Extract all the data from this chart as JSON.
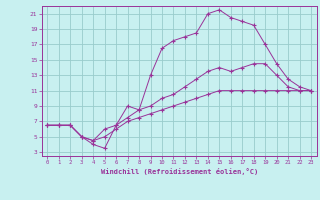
{
  "xlabel": "Windchill (Refroidissement éolien,°C)",
  "bg_color": "#c8f0f0",
  "grid_color": "#99cccc",
  "line_color": "#993399",
  "xlim": [
    -0.5,
    23.5
  ],
  "ylim": [
    2.5,
    22
  ],
  "xticks": [
    0,
    1,
    2,
    3,
    4,
    5,
    6,
    7,
    8,
    9,
    10,
    11,
    12,
    13,
    14,
    15,
    16,
    17,
    18,
    19,
    20,
    21,
    22,
    23
  ],
  "yticks": [
    3,
    5,
    7,
    9,
    11,
    13,
    15,
    17,
    19,
    21
  ],
  "line1_x": [
    0,
    1,
    2,
    3,
    4,
    5,
    6,
    7,
    8,
    9,
    10,
    11,
    12,
    13,
    14,
    15,
    16,
    17,
    18,
    19,
    20,
    21,
    22,
    23
  ],
  "line1_y": [
    6.5,
    6.5,
    6.5,
    5,
    4,
    3.5,
    6.5,
    9,
    8.5,
    13,
    16.5,
    17.5,
    18,
    18.5,
    21,
    21.5,
    20.5,
    20,
    19.5,
    17,
    14.5,
    12.5,
    11.5,
    11
  ],
  "line2_x": [
    0,
    1,
    2,
    3,
    4,
    5,
    6,
    7,
    8,
    9,
    10,
    11,
    12,
    13,
    14,
    15,
    16,
    17,
    18,
    19,
    20,
    21,
    22,
    23
  ],
  "line2_y": [
    6.5,
    6.5,
    6.5,
    5,
    4.5,
    5,
    6,
    7,
    7.5,
    8,
    8.5,
    9,
    9.5,
    10,
    10.5,
    11,
    11,
    11,
    11,
    11,
    11,
    11,
    11,
    11
  ],
  "line3_x": [
    0,
    1,
    2,
    3,
    4,
    5,
    6,
    7,
    8,
    9,
    10,
    11,
    12,
    13,
    14,
    15,
    16,
    17,
    18,
    19,
    20,
    21,
    22,
    23
  ],
  "line3_y": [
    6.5,
    6.5,
    6.5,
    5,
    4.5,
    6,
    6.5,
    7.5,
    8.5,
    9,
    10,
    10.5,
    11.5,
    12.5,
    13.5,
    14,
    13.5,
    14,
    14.5,
    14.5,
    13,
    11.5,
    11,
    11
  ]
}
